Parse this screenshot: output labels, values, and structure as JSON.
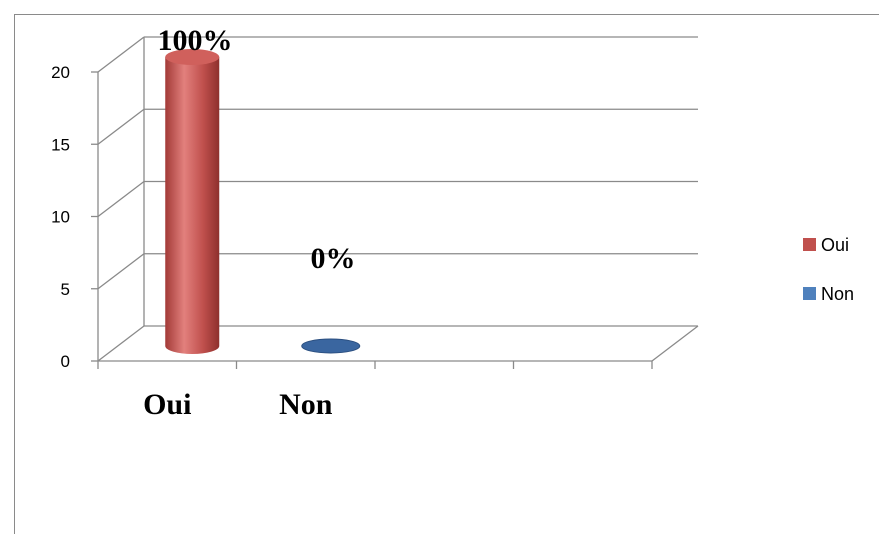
{
  "chart_data": {
    "type": "bar",
    "style": "3d-cylinder",
    "categories": [
      "Oui",
      "Non"
    ],
    "series": [
      {
        "name": "Oui",
        "values": [
          20,
          0
        ],
        "color": "#c0504d"
      },
      {
        "name": "Non",
        "values": [
          0,
          0
        ],
        "color": "#4f81bd"
      }
    ],
    "data_labels": [
      "100%",
      "0%"
    ],
    "yticks": [
      0,
      5,
      10,
      15,
      20
    ],
    "ylim": [
      0,
      20
    ],
    "grid": true,
    "legend_position": "right"
  }
}
